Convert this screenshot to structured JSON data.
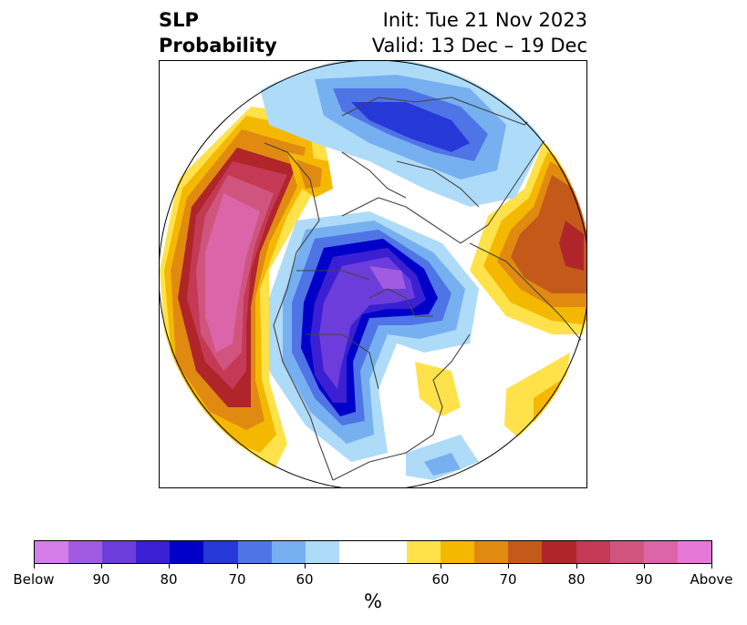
{
  "title": {
    "left_line1": "SLP",
    "left_line2": "Probability",
    "right_line1": "Init: Tue 21 Nov 2023",
    "right_line2": "Valid: 13 Dec – 19 Dec"
  },
  "colorbar": {
    "segments": [
      "#d57de8",
      "#a05be0",
      "#6c3ddb",
      "#3b1fd3",
      "#0000c8",
      "#2738d8",
      "#4f74e6",
      "#77b0f0",
      "#aedbf8",
      "#ffffff",
      "#ffffff",
      "#ffe24a",
      "#f5b800",
      "#e08a12",
      "#c45a1a",
      "#b0252a",
      "#c43a56",
      "#d0557e",
      "#dc64a8",
      "#e479d8"
    ],
    "ticks": [
      "Below",
      "90",
      "80",
      "70",
      "60",
      "60",
      "70",
      "80",
      "90",
      "Above"
    ],
    "units": "%"
  }
}
